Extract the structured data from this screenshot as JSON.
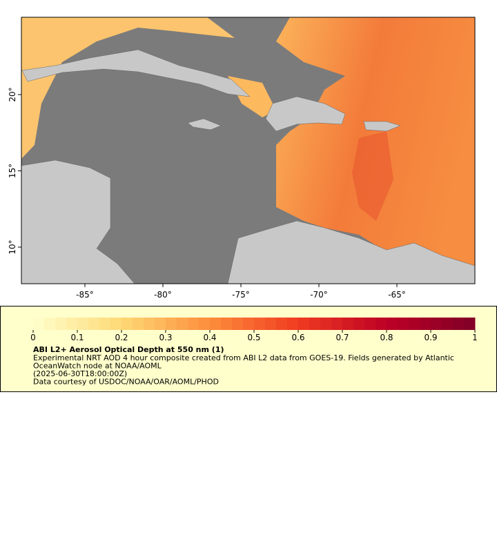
{
  "map": {
    "xlim": [
      -89.07,
      -60.0
    ],
    "ylim": [
      7.6,
      25.07
    ],
    "xticks": [
      {
        "value": -85,
        "label": "-85°"
      },
      {
        "value": -80,
        "label": "-80°"
      },
      {
        "value": -75,
        "label": "-75°"
      },
      {
        "value": -70,
        "label": "-70°"
      },
      {
        "value": -65,
        "label": "-65°"
      }
    ],
    "yticks": [
      {
        "value": 10,
        "label": "10°"
      },
      {
        "value": 15,
        "label": "15°"
      },
      {
        "value": 20,
        "label": "20°"
      }
    ]
  },
  "colorbar": {
    "lim": [
      0,
      1
    ],
    "ticks": [
      0,
      0.1,
      0.2,
      0.3,
      0.4,
      0.5,
      0.6,
      0.7,
      0.8,
      0.9,
      1
    ]
  },
  "legend": {
    "title": "ABI L2+ Aerosol Optical Depth at 550 nm (1)",
    "lines": [
      "Experimental NRT AOD 4 hour composite created from ABI L2 data from GOES-19. Fields generated by Atlantic",
      "OceanWatch node at NOAA/AOML",
      "(2025-06-30T18:00:00Z)",
      "Data courtesy of USDOC/NOAA/OAR/AOML/PHOD"
    ]
  }
}
